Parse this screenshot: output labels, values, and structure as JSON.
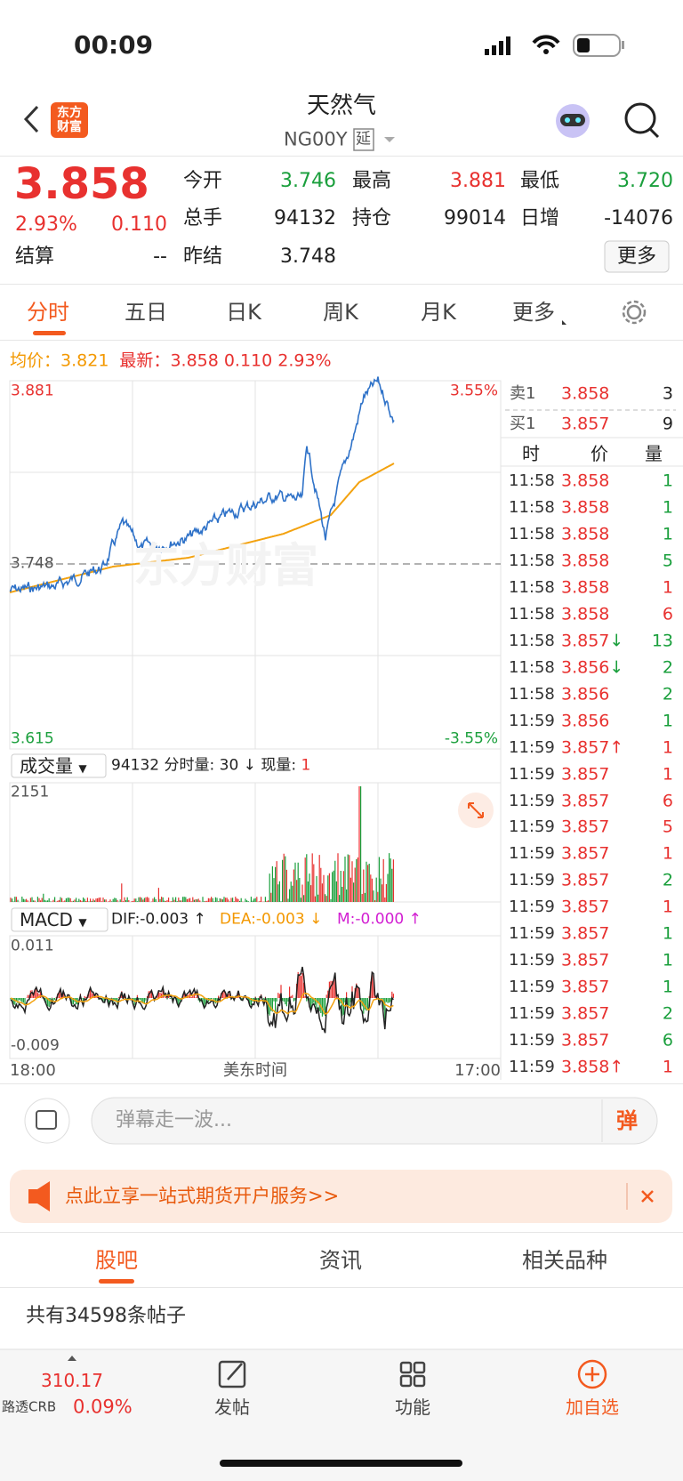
{
  "status_bar": {
    "time": "00:09"
  },
  "header": {
    "logo": "东方财富",
    "title": "天然气",
    "code": "NG00Y",
    "tag": "延"
  },
  "quote": {
    "price": "3.858",
    "change_pct": "2.93%",
    "change": "0.110",
    "settle_label": "结算",
    "settle_value": "--",
    "open_label": "今开",
    "open": "3.746",
    "high_label": "最高",
    "high": "3.881",
    "low_label": "最低",
    "low": "3.720",
    "volume_label": "总手",
    "volume": "94132",
    "oi_label": "持仓",
    "oi": "99014",
    "daily_label": "日增",
    "daily": "-14076",
    "prev_label": "昨结",
    "prev": "3.748",
    "more": "更多"
  },
  "tabs": [
    "分时",
    "五日",
    "日K",
    "周K",
    "月K",
    "更多"
  ],
  "chart_info": {
    "avg_label": "均价：",
    "avg": "3.821",
    "latest_label": "最新：",
    "latest": "3.858",
    "change": "0.110",
    "pct": "2.93%"
  },
  "price_chart": {
    "y_top": "3.881",
    "y_mid": "3.748",
    "y_bottom": "3.615",
    "pct_top": "3.55%",
    "pct_bottom": "-3.55%",
    "watermark": "东方财富"
  },
  "volume_panel": {
    "selector": "成交量",
    "total": "94132",
    "info": "分时量: 30 ↓ 现量:",
    "current": "1",
    "max": "2151"
  },
  "macd_panel": {
    "selector": "MACD",
    "dif": "DIF:-0.003 ↑",
    "dea": "DEA:-0.003 ↓",
    "m": "M:-0.000 ↑",
    "top": "0.011",
    "bottom": "-0.009"
  },
  "x_axis": {
    "start": "18:00",
    "middle": "美东时间",
    "end": "17:00"
  },
  "order_book": {
    "ask_label": "卖1",
    "ask_price": "3.858",
    "ask_size": "3",
    "bid_label": "买1",
    "bid_price": "3.857",
    "bid_size": "9"
  },
  "trades": {
    "header": [
      "时",
      "价",
      "量"
    ],
    "rows": [
      {
        "time": "11:58",
        "price": "3.858",
        "volume": "1",
        "color": "#1a9f3c"
      },
      {
        "time": "11:58",
        "price": "3.858",
        "volume": "1",
        "color": "#1a9f3c"
      },
      {
        "time": "11:58",
        "price": "3.858",
        "volume": "1",
        "color": "#1a9f3c"
      },
      {
        "time": "11:58",
        "price": "3.858",
        "volume": "5",
        "color": "#1a9f3c"
      },
      {
        "time": "11:58",
        "price": "3.858",
        "volume": "1",
        "color": "#e8312f"
      },
      {
        "time": "11:58",
        "price": "3.858",
        "volume": "6",
        "color": "#e8312f"
      },
      {
        "time": "11:58",
        "price": "3.857",
        "arrow": "↓",
        "arrow_color": "#1a9f3c",
        "volume": "13",
        "color": "#1a9f3c"
      },
      {
        "time": "11:58",
        "price": "3.856",
        "arrow": "↓",
        "arrow_color": "#1a9f3c",
        "volume": "2",
        "color": "#1a9f3c"
      },
      {
        "time": "11:58",
        "price": "3.856",
        "volume": "2",
        "color": "#1a9f3c"
      },
      {
        "time": "11:59",
        "price": "3.856",
        "volume": "1",
        "color": "#1a9f3c"
      },
      {
        "time": "11:59",
        "price": "3.857",
        "arrow": "↑",
        "arrow_color": "#e8312f",
        "volume": "1",
        "color": "#e8312f"
      },
      {
        "time": "11:59",
        "price": "3.857",
        "volume": "1",
        "color": "#e8312f"
      },
      {
        "time": "11:59",
        "price": "3.857",
        "volume": "6",
        "color": "#e8312f"
      },
      {
        "time": "11:59",
        "price": "3.857",
        "volume": "5",
        "color": "#e8312f"
      },
      {
        "time": "11:59",
        "price": "3.857",
        "volume": "1",
        "color": "#e8312f"
      },
      {
        "time": "11:59",
        "price": "3.857",
        "volume": "2",
        "color": "#1a9f3c"
      },
      {
        "time": "11:59",
        "price": "3.857",
        "volume": "1",
        "color": "#e8312f"
      },
      {
        "time": "11:59",
        "price": "3.857",
        "volume": "1",
        "color": "#1a9f3c"
      },
      {
        "time": "11:59",
        "price": "3.857",
        "volume": "1",
        "color": "#1a9f3c"
      },
      {
        "time": "11:59",
        "price": "3.857",
        "volume": "1",
        "color": "#1a9f3c"
      },
      {
        "time": "11:59",
        "price": "3.857",
        "volume": "2",
        "color": "#1a9f3c"
      },
      {
        "time": "11:59",
        "price": "3.857",
        "volume": "6",
        "color": "#1a9f3c"
      },
      {
        "time": "11:59",
        "price": "3.858",
        "arrow": "↑",
        "arrow_color": "#e8312f",
        "volume": "1",
        "color": "#e8312f"
      }
    ]
  },
  "danmu": {
    "placeholder": "弹幕走一波...",
    "button": "弹"
  },
  "banner": {
    "text": "点此立享一站式期货开户服务>>"
  },
  "bottom_tabs": [
    "股吧",
    "资讯",
    "相关品种"
  ],
  "post_count": "共有34598条帖子",
  "nav": {
    "index_value": "310.17",
    "index_name": "路透CRB",
    "index_pct": "0.09%",
    "items": [
      "发帖",
      "功能",
      "加自选"
    ]
  }
}
